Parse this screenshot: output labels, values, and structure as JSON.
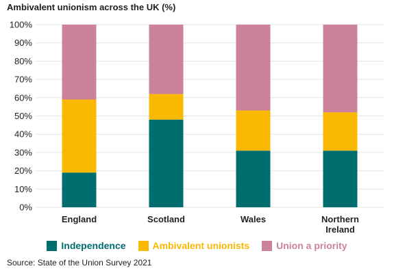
{
  "chart_data": {
    "type": "bar",
    "stacked": true,
    "title": "Ambivalent unionism across the UK  (%)",
    "categories": [
      "England",
      "Scotland",
      "Wales",
      "Northern\nIreland"
    ],
    "series": [
      {
        "name": "Independence",
        "color": "#006d6f",
        "values": [
          19,
          48,
          31,
          31
        ]
      },
      {
        "name": "Ambivalent unionists",
        "color": "#fbb800",
        "values": [
          40,
          14,
          22,
          21
        ]
      },
      {
        "name": "Union a priority",
        "color": "#cc819d",
        "values": [
          41,
          38,
          47,
          48
        ]
      }
    ],
    "ylim": [
      0,
      100
    ],
    "yticks": [
      0,
      10,
      20,
      30,
      40,
      50,
      60,
      70,
      80,
      90,
      100
    ],
    "ytick_suffix": "%",
    "grid": true,
    "legend_position": "bottom"
  },
  "source": "Source: State of the Union Survey 2021"
}
